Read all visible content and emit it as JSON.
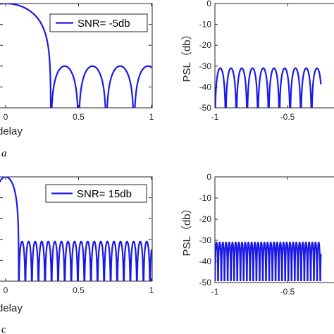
{
  "figure": {
    "panel_letters": [
      "a",
      "c"
    ]
  },
  "chart_data": [
    {
      "id": "a-left",
      "type": "line",
      "xlabel": "delay",
      "ylabel": "",
      "xlim": [
        -0.05,
        1
      ],
      "ylim": [
        -50,
        0
      ],
      "xticks": [
        0,
        0.5,
        1
      ],
      "xtick_labels": [
        "0",
        "0.5",
        "1"
      ],
      "yticks": [
        0,
        -10,
        -20,
        -30,
        -40,
        -50
      ],
      "ytick_labels": [],
      "grid": false,
      "legend": {
        "entries": [
          "SNR= -5db"
        ],
        "position": "top-right"
      },
      "series": [
        {
          "name": "SNR= -5db",
          "color": "#1a1ae6",
          "description_values": {
            "mainlobe_peak": 0,
            "mainlobe_null": 0.31,
            "sidelobe_level": -30,
            "sidelobe_period": 0.19
          }
        }
      ]
    },
    {
      "id": "a-right",
      "type": "line",
      "xlabel": "",
      "ylabel": "PSL（db）",
      "xlim": [
        -1,
        -0.3
      ],
      "ylim": [
        -50,
        0
      ],
      "xticks": [
        -1,
        -0.5
      ],
      "xtick_labels": [
        "-1",
        "-0.5"
      ],
      "yticks": [
        0,
        -10,
        -20,
        -30,
        -40,
        -50
      ],
      "ytick_labels": [
        "0",
        "-10",
        "-20",
        "-30",
        "-40",
        "-50"
      ],
      "grid": false,
      "series": [
        {
          "name": "",
          "color": "#1a1ae6",
          "description_values": {
            "sidelobe_level": -31,
            "lobe_period": 0.074
          }
        }
      ]
    },
    {
      "id": "c-left",
      "type": "line",
      "xlabel": "delay",
      "ylabel": "",
      "xlim": [
        -0.05,
        1
      ],
      "ylim": [
        -50,
        0
      ],
      "xticks": [
        0,
        0.5,
        1
      ],
      "xtick_labels": [
        "0",
        "0.5",
        "1"
      ],
      "yticks": [
        0,
        -10,
        -20,
        -30,
        -40,
        -50
      ],
      "ytick_labels": [],
      "grid": false,
      "legend": {
        "entries": [
          "SNR= 15db"
        ],
        "position": "top-right"
      },
      "series": [
        {
          "name": "SNR= 15db",
          "color": "#1a1ae6",
          "description_values": {
            "mainlobe_peak": 0,
            "mainlobe_null": 0.09,
            "sidelobe_level": -31,
            "sidelobe_period": 0.045
          }
        }
      ]
    },
    {
      "id": "c-right",
      "type": "line",
      "xlabel": "",
      "ylabel": "PSL（db）",
      "xlim": [
        -1,
        -0.3
      ],
      "ylim": [
        -50,
        0
      ],
      "xticks": [
        -1,
        -0.5
      ],
      "xtick_labels": [
        "-1",
        "-0.5"
      ],
      "yticks": [
        0,
        -10,
        -20,
        -30,
        -40,
        -50
      ],
      "ytick_labels": [
        "0",
        "-10",
        "-20",
        "-30",
        "-40",
        "-50"
      ],
      "grid": false,
      "series": [
        {
          "name": "",
          "color": "#1a1ae6",
          "description_values": {
            "sidelobe_level": -31,
            "lobe_period": 0.022
          }
        }
      ]
    }
  ]
}
